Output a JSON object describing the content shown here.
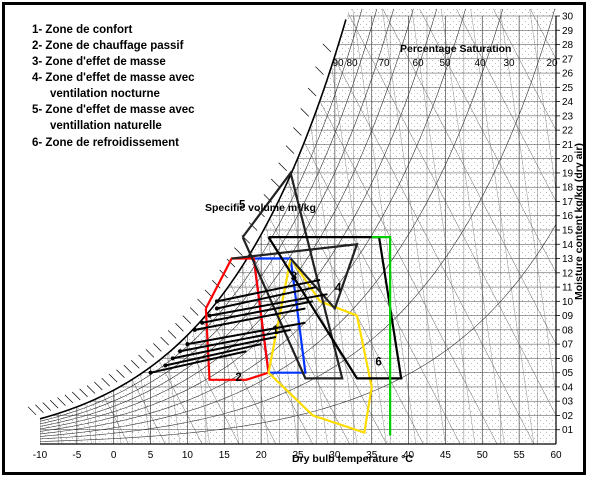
{
  "chart_data": {
    "type": "psychrometric",
    "legend": [
      "1- Zone de confort",
      "2- Zone de chauffage passif",
      "3- Zone d'effet de masse",
      "4- Zone d'effet de masse avec",
      "ventilation nocturne",
      "5- Zone d'effet de masse avec",
      "ventillation naturelle",
      "6- Zone de refroidissement"
    ],
    "xlabel": "Dry bulb temperature °C",
    "ylabel": "Moisture content kg/kg (dry air)",
    "top_label": "Percentage Saturation",
    "volume_label": "Specific volume m³/kg",
    "x_ticks": [
      "-10",
      "-5",
      "0",
      "5",
      "10",
      "15",
      "20",
      "25",
      "30",
      "35",
      "40",
      "45",
      "50",
      "55",
      "60"
    ],
    "y_ticks": [
      "01",
      "02",
      "03",
      "04",
      "05",
      "06",
      "07",
      "08",
      "09",
      "10",
      "11",
      "12",
      "13",
      "14",
      "15",
      "16",
      "17",
      "18",
      "19",
      "20",
      "21",
      "22",
      "23",
      "24",
      "25",
      "26",
      "27",
      "28",
      "29",
      "30"
    ],
    "saturation_ticks": [
      "90",
      "80",
      "70",
      "60",
      "50",
      "40",
      "30",
      "20"
    ],
    "xlim": [
      -10,
      60
    ],
    "ylim": [
      0,
      30
    ],
    "zones": [
      {
        "id": "1",
        "name": "Zone de confort",
        "color": "#0033ff",
        "points": [
          [
            19,
            13
          ],
          [
            24,
            13
          ],
          [
            26,
            5
          ],
          [
            21,
            5
          ],
          [
            19,
            13
          ]
        ]
      },
      {
        "id": "2",
        "name": "Zone de chauffage passif",
        "color": "#ff0000",
        "points": [
          [
            12.5,
            9.5
          ],
          [
            16,
            13
          ],
          [
            19,
            13
          ],
          [
            21,
            5
          ],
          [
            18,
            4.5
          ],
          [
            13,
            4.5
          ],
          [
            12.5,
            9.5
          ]
        ]
      },
      {
        "id": "3",
        "name": "Zone d'effet de masse",
        "color": "#ffdd00",
        "points": [
          [
            24,
            13
          ],
          [
            28,
            10
          ],
          [
            33,
            9
          ],
          [
            35,
            4
          ],
          [
            34,
            0.8
          ],
          [
            27,
            2
          ],
          [
            21,
            5
          ],
          [
            24,
            13
          ]
        ]
      },
      {
        "id": "4",
        "name": "Zone d'effet de masse avec ventilation nocturne",
        "color": "#222222",
        "points": [
          [
            16,
            13
          ],
          [
            33,
            14
          ],
          [
            30,
            9.5
          ],
          [
            24,
            13
          ]
        ]
      },
      {
        "id": "5",
        "name": "Zone d'effet de masse avec ventillation naturelle",
        "color": "#222222",
        "points": [
          [
            17.5,
            14.5
          ],
          [
            24,
            19
          ],
          [
            31,
            4.6
          ],
          [
            26,
            4.6
          ],
          [
            17.5,
            14.5
          ]
        ]
      },
      {
        "id": "6",
        "name": "Zone de refroidissement",
        "color": "#000000",
        "points": [
          [
            21,
            14.5
          ],
          [
            36,
            14.5
          ],
          [
            39,
            4.6
          ],
          [
            33,
            4.6
          ],
          [
            21,
            14.5
          ]
        ]
      },
      {
        "id": "green",
        "name": "",
        "color": "#00cc00",
        "points": [
          [
            35,
            14.5
          ],
          [
            37.5,
            14.5
          ],
          [
            37.5,
            0.6
          ]
        ]
      }
    ],
    "zone_labels": [
      {
        "text": "1",
        "x": 21.5,
        "y": 7.7
      },
      {
        "text": "2",
        "x": 16.5,
        "y": 4.4
      },
      {
        "text": "3",
        "x": 24,
        "y": 11.5
      },
      {
        "text": "4",
        "x": 30,
        "y": 10.7
      },
      {
        "text": "5",
        "x": 17,
        "y": 16.5
      },
      {
        "text": "6",
        "x": 35.5,
        "y": 5.5
      }
    ],
    "climate_lines": [
      [
        [
          14,
          10
        ],
        [
          28,
          11.5
        ]
      ],
      [
        [
          14,
          9.5
        ],
        [
          27.5,
          11
        ]
      ],
      [
        [
          13,
          9
        ],
        [
          29,
          10.5
        ]
      ],
      [
        [
          12,
          8.5
        ],
        [
          27,
          10
        ]
      ],
      [
        [
          11,
          8
        ],
        [
          26,
          9.5
        ]
      ],
      [
        [
          10,
          7
        ],
        [
          26,
          8.5
        ]
      ],
      [
        [
          9,
          6.5
        ],
        [
          24,
          8
        ]
      ],
      [
        [
          8,
          6
        ],
        [
          22,
          7.5
        ]
      ],
      [
        [
          7,
          5.5
        ],
        [
          20,
          7
        ]
      ],
      [
        [
          5,
          5
        ],
        [
          18,
          6.5
        ]
      ]
    ]
  }
}
